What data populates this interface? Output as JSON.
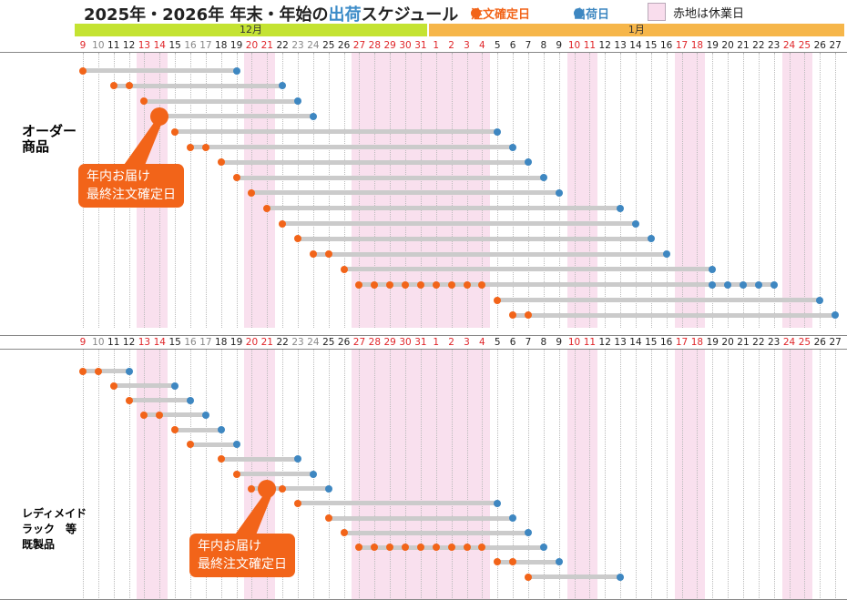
{
  "title": {
    "main": "2025年・2026年 年末・年始の",
    "highlight": "出荷",
    "tail": "スケジュール"
  },
  "legend": {
    "order": "注文確定日",
    "ship": "出荷日",
    "holiday": "赤地は休業日"
  },
  "colors": {
    "order": "#f26419",
    "ship": "#3e87c1",
    "holiday": "#f9e0ee",
    "bar": "#cbcbcb",
    "dec_band": "#c4e332",
    "jan_band": "#f6b64a",
    "red_day": "#e0262a",
    "gray_day": "#888888",
    "black_day": "#222222"
  },
  "months": [
    {
      "label": "12月",
      "start": 0,
      "end": 22
    },
    {
      "label": "1月",
      "start": 23,
      "end": 49
    }
  ],
  "days": [
    {
      "d": "9",
      "c": "r"
    },
    {
      "d": "10",
      "c": "g"
    },
    {
      "d": "11",
      "c": "b"
    },
    {
      "d": "12",
      "c": "b"
    },
    {
      "d": "13",
      "c": "r"
    },
    {
      "d": "14",
      "c": "r"
    },
    {
      "d": "15",
      "c": "b"
    },
    {
      "d": "16",
      "c": "g"
    },
    {
      "d": "17",
      "c": "g"
    },
    {
      "d": "18",
      "c": "b"
    },
    {
      "d": "19",
      "c": "b"
    },
    {
      "d": "20",
      "c": "r"
    },
    {
      "d": "21",
      "c": "r"
    },
    {
      "d": "22",
      "c": "b"
    },
    {
      "d": "23",
      "c": "g"
    },
    {
      "d": "24",
      "c": "g"
    },
    {
      "d": "25",
      "c": "b"
    },
    {
      "d": "26",
      "c": "b"
    },
    {
      "d": "27",
      "c": "r"
    },
    {
      "d": "28",
      "c": "r"
    },
    {
      "d": "29",
      "c": "r"
    },
    {
      "d": "30",
      "c": "r"
    },
    {
      "d": "31",
      "c": "r"
    },
    {
      "d": "1",
      "c": "r"
    },
    {
      "d": "2",
      "c": "r"
    },
    {
      "d": "3",
      "c": "r"
    },
    {
      "d": "4",
      "c": "r"
    },
    {
      "d": "5",
      "c": "b"
    },
    {
      "d": "6",
      "c": "b"
    },
    {
      "d": "7",
      "c": "b"
    },
    {
      "d": "8",
      "c": "b"
    },
    {
      "d": "9",
      "c": "b"
    },
    {
      "d": "10",
      "c": "r"
    },
    {
      "d": "11",
      "c": "r"
    },
    {
      "d": "12",
      "c": "b"
    },
    {
      "d": "13",
      "c": "b"
    },
    {
      "d": "14",
      "c": "b"
    },
    {
      "d": "15",
      "c": "b"
    },
    {
      "d": "16",
      "c": "b"
    },
    {
      "d": "17",
      "c": "r"
    },
    {
      "d": "18",
      "c": "r"
    },
    {
      "d": "19",
      "c": "b"
    },
    {
      "d": "20",
      "c": "b"
    },
    {
      "d": "21",
      "c": "b"
    },
    {
      "d": "22",
      "c": "b"
    },
    {
      "d": "23",
      "c": "b"
    },
    {
      "d": "24",
      "c": "r"
    },
    {
      "d": "25",
      "c": "r"
    },
    {
      "d": "26",
      "c": "b"
    },
    {
      "d": "27",
      "c": "b"
    }
  ],
  "holiday_ranges": [
    [
      4,
      5
    ],
    [
      11,
      12
    ],
    [
      18,
      26
    ],
    [
      32,
      33
    ],
    [
      39,
      40
    ],
    [
      46,
      47
    ]
  ],
  "sections": [
    {
      "label": "オーダー\n商品",
      "label_color": "#e0262a",
      "callout": "年内お届け\n最終注文確定日"
    },
    {
      "label": "レディメイド\nラック　等\n既製品",
      "label_color": "#111111",
      "callout": "年内お届け\n最終注文確定日"
    }
  ],
  "chart_data": {
    "type": "gantt",
    "title": "2025年・2026年 年末・年始の出荷スケジュール",
    "x_axis": "日付 (12/9 〜 1/27)",
    "legend": [
      "注文確定日",
      "出荷日",
      "赤地は休業日"
    ],
    "holidays": [
      "12/9",
      "12/13",
      "12/14",
      "12/20",
      "12/21",
      "12/27",
      "12/28",
      "12/29",
      "12/30",
      "12/31",
      "1/1",
      "1/2",
      "1/3",
      "1/4",
      "1/10",
      "1/11",
      "1/17",
      "1/18",
      "1/24",
      "1/25"
    ],
    "series": [
      {
        "name": "オーダー商品",
        "last_order_for_year_delivery": "12/14",
        "rows": [
          {
            "order": [
              "12/9"
            ],
            "ship": [
              "12/19"
            ]
          },
          {
            "order": [
              "12/11",
              "12/12"
            ],
            "ship": [
              "12/22"
            ]
          },
          {
            "order": [
              "12/13"
            ],
            "ship": [
              "12/23"
            ]
          },
          {
            "order": [
              "12/14"
            ],
            "ship": [
              "12/24"
            ]
          },
          {
            "order": [
              "12/15"
            ],
            "ship": [
              "1/5"
            ]
          },
          {
            "order": [
              "12/16",
              "12/17"
            ],
            "ship": [
              "1/6"
            ]
          },
          {
            "order": [
              "12/18"
            ],
            "ship": [
              "1/7"
            ]
          },
          {
            "order": [
              "12/19"
            ],
            "ship": [
              "1/8"
            ]
          },
          {
            "order": [
              "12/20"
            ],
            "ship": [
              "1/9"
            ]
          },
          {
            "order": [
              "12/21"
            ],
            "ship": [
              "1/13"
            ]
          },
          {
            "order": [
              "12/22"
            ],
            "ship": [
              "1/14"
            ]
          },
          {
            "order": [
              "12/23"
            ],
            "ship": [
              "1/15"
            ]
          },
          {
            "order": [
              "12/24",
              "12/25"
            ],
            "ship": [
              "1/16"
            ]
          },
          {
            "order": [
              "12/26"
            ],
            "ship": [
              "1/19"
            ]
          },
          {
            "order": [
              "12/27",
              "12/28",
              "12/29",
              "12/30",
              "12/31",
              "1/1",
              "1/2",
              "1/3",
              "1/4"
            ],
            "ship": [
              "1/19",
              "1/20",
              "1/21",
              "1/22",
              "1/23"
            ]
          },
          {
            "order": [
              "1/5"
            ],
            "ship": [
              "1/26"
            ]
          },
          {
            "order": [
              "1/6",
              "1/7"
            ],
            "ship": [
              "1/27"
            ]
          }
        ]
      },
      {
        "name": "レディメイド ラック 等 既製品",
        "last_order_for_year_delivery": "12/21",
        "rows": [
          {
            "order": [
              "12/9",
              "12/10"
            ],
            "ship": [
              "12/12"
            ]
          },
          {
            "order": [
              "12/11"
            ],
            "ship": [
              "12/15"
            ]
          },
          {
            "order": [
              "12/12"
            ],
            "ship": [
              "12/16"
            ]
          },
          {
            "order": [
              "12/13",
              "12/14"
            ],
            "ship": [
              "12/17"
            ]
          },
          {
            "order": [
              "12/15"
            ],
            "ship": [
              "12/18"
            ]
          },
          {
            "order": [
              "12/16"
            ],
            "ship": [
              "12/19"
            ]
          },
          {
            "order": [
              "12/18"
            ],
            "ship": [
              "12/23"
            ]
          },
          {
            "order": [
              "12/19"
            ],
            "ship": [
              "12/24"
            ]
          },
          {
            "order": [
              "12/20",
              "12/21",
              "12/22"
            ],
            "ship": [
              "12/25"
            ]
          },
          {
            "order": [
              "12/23"
            ],
            "ship": [
              "1/5"
            ]
          },
          {
            "order": [
              "12/25"
            ],
            "ship": [
              "1/6"
            ]
          },
          {
            "order": [
              "12/26"
            ],
            "ship": [
              "1/7"
            ]
          },
          {
            "order": [
              "12/27",
              "12/28",
              "12/29",
              "12/30",
              "12/31",
              "1/1",
              "1/2",
              "1/3",
              "1/4"
            ],
            "ship": [
              "1/8"
            ]
          },
          {
            "order": [
              "1/5",
              "1/6"
            ],
            "ship": [
              "1/9"
            ]
          },
          {
            "order": [
              "1/7"
            ],
            "ship": [
              "1/13"
            ]
          }
        ]
      }
    ],
    "rows_idx": {
      "top": [
        {
          "o": [
            0
          ],
          "s": [
            10
          ]
        },
        {
          "o": [
            2,
            3
          ],
          "s": [
            13
          ]
        },
        {
          "o": [
            4
          ],
          "s": [
            14
          ]
        },
        {
          "o": [
            5
          ],
          "s": [
            15
          ],
          "big": 5
        },
        {
          "o": [
            6
          ],
          "s": [
            27
          ]
        },
        {
          "o": [
            7,
            8
          ],
          "s": [
            28
          ]
        },
        {
          "o": [
            9
          ],
          "s": [
            29
          ]
        },
        {
          "o": [
            10
          ],
          "s": [
            30
          ]
        },
        {
          "o": [
            11
          ],
          "s": [
            31
          ]
        },
        {
          "o": [
            12
          ],
          "s": [
            35
          ]
        },
        {
          "o": [
            13
          ],
          "s": [
            36
          ]
        },
        {
          "o": [
            14
          ],
          "s": [
            37
          ]
        },
        {
          "o": [
            15,
            16
          ],
          "s": [
            38
          ]
        },
        {
          "o": [
            17
          ],
          "s": [
            41
          ]
        },
        {
          "o": [
            18,
            19,
            20,
            21,
            22,
            23,
            24,
            25,
            26
          ],
          "s": [
            41,
            42,
            43,
            44,
            45
          ]
        },
        {
          "o": [
            27
          ],
          "s": [
            48
          ]
        },
        {
          "o": [
            28,
            29
          ],
          "s": [
            49
          ]
        }
      ],
      "bottom": [
        {
          "o": [
            0,
            1
          ],
          "s": [
            3
          ]
        },
        {
          "o": [
            2
          ],
          "s": [
            6
          ]
        },
        {
          "o": [
            3
          ],
          "s": [
            7
          ]
        },
        {
          "o": [
            4,
            5
          ],
          "s": [
            8
          ]
        },
        {
          "o": [
            6
          ],
          "s": [
            9
          ]
        },
        {
          "o": [
            7
          ],
          "s": [
            10
          ]
        },
        {
          "o": [
            9
          ],
          "s": [
            14
          ]
        },
        {
          "o": [
            10
          ],
          "s": [
            15
          ]
        },
        {
          "o": [
            11,
            13
          ],
          "s": [
            16
          ],
          "big": 12
        },
        {
          "o": [
            14
          ],
          "s": [
            27
          ]
        },
        {
          "o": [
            16
          ],
          "s": [
            28
          ]
        },
        {
          "o": [
            17
          ],
          "s": [
            29
          ]
        },
        {
          "o": [
            18,
            19,
            20,
            21,
            22,
            23,
            24,
            25,
            26
          ],
          "s": [
            30
          ]
        },
        {
          "o": [
            27,
            28
          ],
          "s": [
            31
          ]
        },
        {
          "o": [
            29
          ],
          "s": [
            35
          ]
        }
      ]
    }
  }
}
